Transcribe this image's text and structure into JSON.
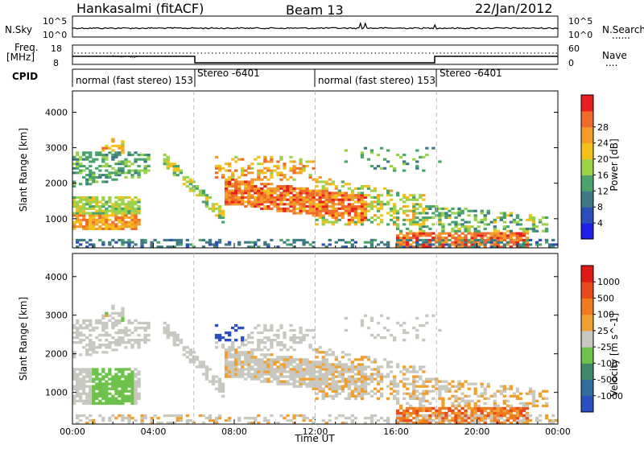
{
  "header": {
    "station": "Hankasalmi (fitACF)",
    "beam": "Beam 13",
    "date": "22/Jan/2012"
  },
  "strip": {
    "nsky_label": "N.Sky",
    "nsearch_label": "N.Search",
    "nsearch_dots": "......",
    "freq_label": "Freq.",
    "freq_unit": "[MHz]",
    "nave_label": "Nave",
    "nave_dots": "....",
    "cpid_label": "CPID",
    "left_ticks_top": [
      "10^5",
      "10^0"
    ],
    "right_ticks_top": [
      "10^5",
      "10^0"
    ],
    "left_ticks_freq": [
      "18",
      "8"
    ],
    "right_ticks_nave": [
      "60",
      "0"
    ]
  },
  "cpid_segments": [
    {
      "label": "normal (fast stereo) 153"
    },
    {
      "label": "Stereo -6401"
    },
    {
      "label": "normal (fast stereo) 153"
    },
    {
      "label": "Stereo -6401"
    }
  ],
  "chart_data": [
    {
      "type": "heatmap",
      "title": "Power",
      "ylabel": "Slant Range [km]",
      "xlabel": "Time UT",
      "x_ticks": [
        "00:00",
        "04:00",
        "08:00",
        "12:00",
        "16:00",
        "20:00",
        "00:00"
      ],
      "y_ticks": [
        1000,
        2000,
        3000,
        4000
      ],
      "ylim": [
        180,
        4600
      ],
      "colorbar_label": "Power [dB]",
      "colorbar_ticks": [
        4,
        8,
        12,
        16,
        20,
        24,
        28
      ],
      "colorbar_colors": [
        "#1f1fe6",
        "#2a4fb8",
        "#3d7a86",
        "#4aa36b",
        "#9bd24a",
        "#f2c21b",
        "#f59b2a",
        "#f06a2a",
        "#e6201c"
      ]
    },
    {
      "type": "heatmap",
      "title": "Velocity",
      "ylabel": "Slant Range [km]",
      "xlabel": "Time UT",
      "x_ticks": [
        "00:00",
        "04:00",
        "08:00",
        "12:00",
        "16:00",
        "20:00",
        "00:00"
      ],
      "y_ticks": [
        1000,
        2000,
        3000,
        4000
      ],
      "ylim": [
        180,
        4600
      ],
      "colorbar_label": "Velocity [m s^-1]",
      "colorbar_ticks": [
        "1000",
        "500",
        "100",
        "25",
        "-25",
        "-100",
        "-500",
        "-1000"
      ],
      "colorbar_colors": [
        "#2a4fc0",
        "#2f6fa0",
        "#3c8a6a",
        "#6cc24a",
        "#c8c8c0",
        "#f0a030",
        "#f07a20",
        "#e84a1a",
        "#e01a14"
      ]
    }
  ]
}
